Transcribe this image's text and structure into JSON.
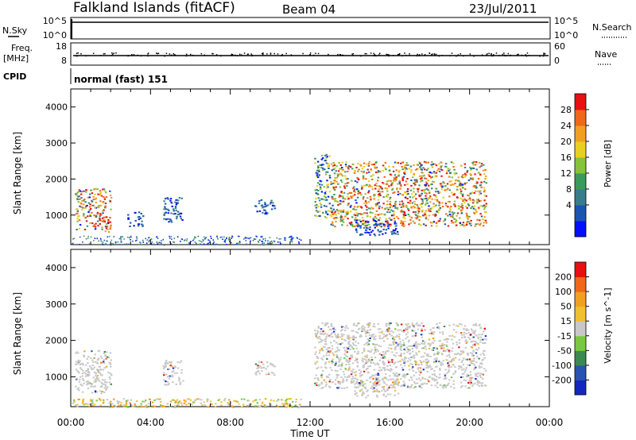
{
  "header": {
    "site": "Falkland Islands (fitACF)",
    "beam": "Beam 04",
    "date": "23/Jul/2011"
  },
  "meta_panels": {
    "nsky": {
      "label": "N.Sky",
      "ticks": [
        "10^5",
        "10^0"
      ]
    },
    "nsearch": {
      "label": "N.Search",
      "ticks": [
        "10^5",
        "10^0"
      ]
    },
    "freq": {
      "label_line1": "Freq.",
      "label_line2": "[MHz]",
      "ticks": [
        "18",
        "8"
      ]
    },
    "nave": {
      "label": "Nave",
      "ticks": [
        "60",
        "0"
      ]
    },
    "cpid": {
      "label": "CPID",
      "mode": "normal (fast) 151"
    }
  },
  "chart_data": [
    {
      "type": "heatmap",
      "name": "Power",
      "ylabel": "Slant Range [km]",
      "ylim": [
        180,
        4500
      ],
      "yticks": [
        1000,
        2000,
        3000,
        4000
      ],
      "xlim_hours": [
        0,
        24
      ],
      "colorbar": {
        "label": "Power [dB]",
        "ticks": [
          "28",
          "24",
          "20",
          "16",
          "12",
          "8",
          "4"
        ],
        "colors": [
          "#0010ff",
          "#1a55b0",
          "#3a7d8a",
          "#3a9a5a",
          "#86c23a",
          "#e8d020",
          "#f0a020",
          "#f06818",
          "#e81010"
        ]
      },
      "regions": [
        {
          "t": [
            0.2,
            2.0
          ],
          "r": [
            550,
            1750
          ],
          "level": "high"
        },
        {
          "t": [
            4.6,
            5.6
          ],
          "r": [
            800,
            1500
          ],
          "level": "low"
        },
        {
          "t": [
            2.8,
            3.6
          ],
          "r": [
            700,
            1100
          ],
          "level": "low"
        },
        {
          "t": [
            9.2,
            10.2
          ],
          "r": [
            1050,
            1450
          ],
          "level": "low"
        },
        {
          "t": [
            12.2,
            13.0
          ],
          "r": [
            950,
            2700
          ],
          "level": "medium"
        },
        {
          "t": [
            13.0,
            20.8
          ],
          "r": [
            700,
            2500
          ],
          "level": "high"
        },
        {
          "t": [
            14.2,
            16.4
          ],
          "r": [
            450,
            900
          ],
          "level": "low"
        }
      ]
    },
    {
      "type": "heatmap",
      "name": "Velocity",
      "ylabel": "Slant Range [km]",
      "xlabel": "Time UT",
      "ylim": [
        180,
        4500
      ],
      "yticks": [
        1000,
        2000,
        3000,
        4000
      ],
      "xticks": [
        "00:00",
        "04:00",
        "08:00",
        "12:00",
        "16:00",
        "20:00",
        "00:00"
      ],
      "xlim_hours": [
        0,
        24
      ],
      "colorbar": {
        "label": "Velocity [m s^-1]",
        "ticks": [
          "200",
          "100",
          "50",
          "15",
          "-15",
          "-50",
          "-100",
          "-200"
        ],
        "colors": [
          "#1428c0",
          "#2a52b0",
          "#3a8a50",
          "#78c840",
          "#c8c8c8",
          "#f0c030",
          "#f0a020",
          "#f06818",
          "#e81010"
        ]
      },
      "regions": [
        {
          "t": [
            0.2,
            2.0
          ],
          "r": [
            550,
            1750
          ],
          "level": "gray"
        },
        {
          "t": [
            4.6,
            5.6
          ],
          "r": [
            800,
            1500
          ],
          "level": "gray"
        },
        {
          "t": [
            9.2,
            10.2
          ],
          "r": [
            1050,
            1450
          ],
          "level": "gray"
        },
        {
          "t": [
            12.2,
            20.8
          ],
          "r": [
            700,
            2500
          ],
          "level": "gray"
        },
        {
          "t": [
            14.2,
            16.4
          ],
          "r": [
            450,
            900
          ],
          "level": "gray"
        },
        {
          "t": [
            0,
            11.5
          ],
          "r": [
            180,
            420
          ],
          "level": "ground"
        }
      ]
    }
  ]
}
